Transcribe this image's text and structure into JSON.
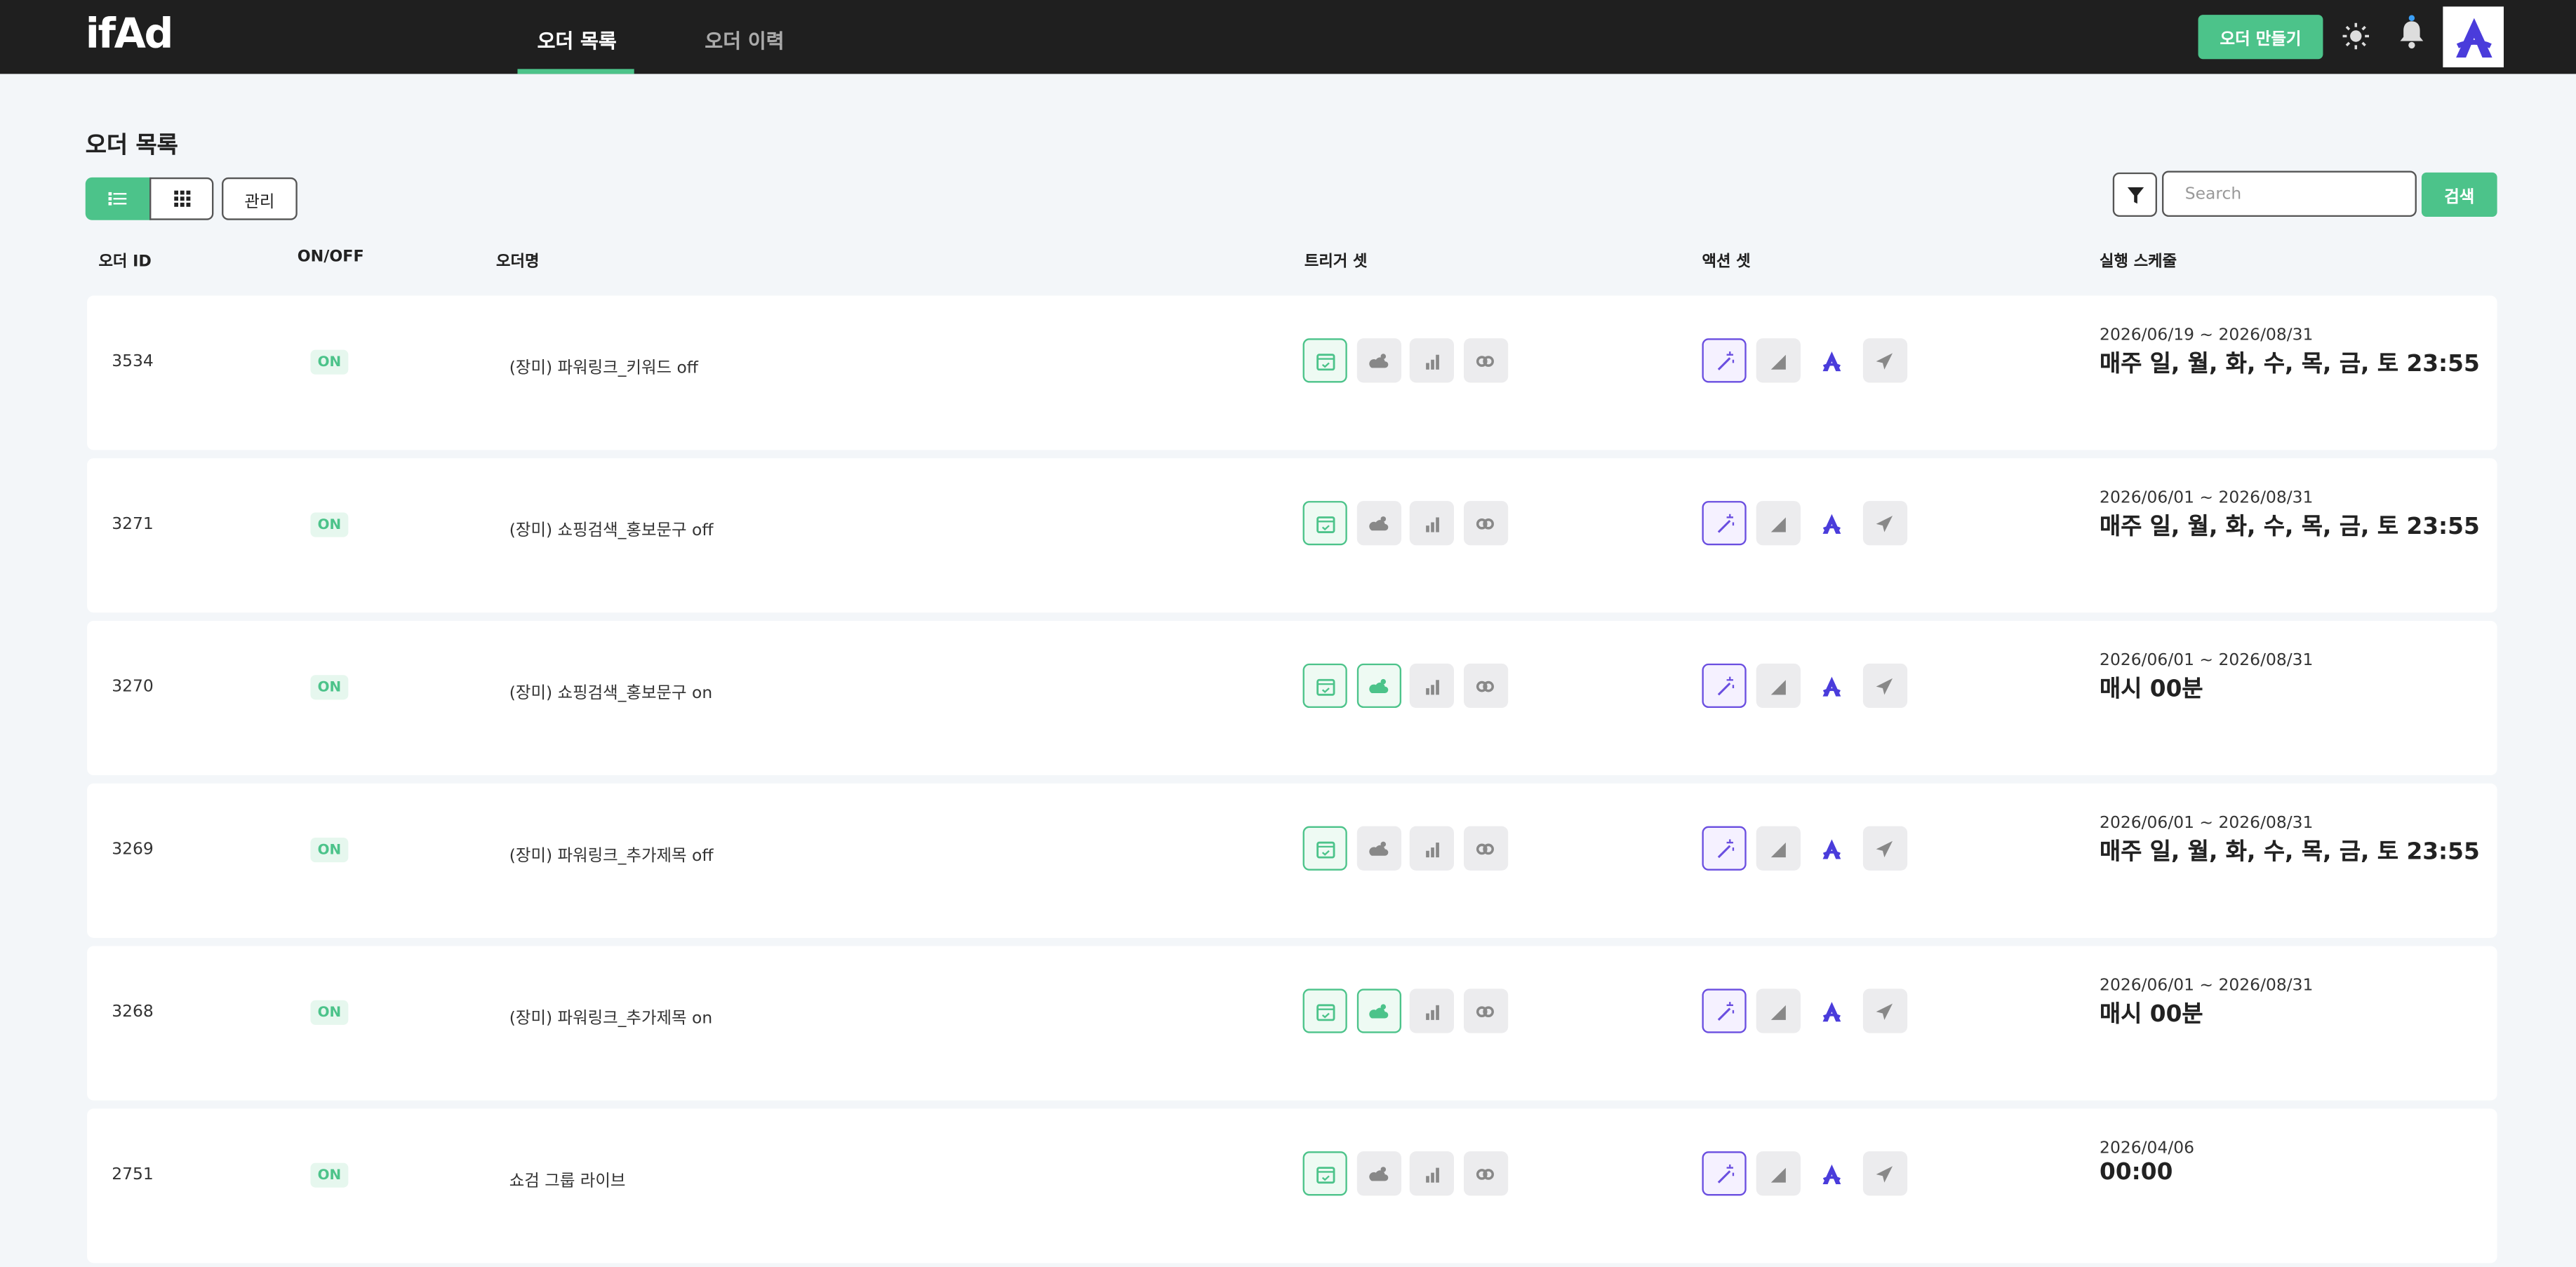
{
  "header": {
    "logo": "ifAd",
    "tabs": [
      "오더 목록",
      "오더 이력"
    ],
    "create_button": "오더 만들기"
  },
  "title": "오더 목록",
  "toolbar": {
    "manage_button": "관리",
    "search_placeholder": "Search",
    "search_button": "검색"
  },
  "table": {
    "columns": [
      "오더 ID",
      "ON/OFF",
      "오더명",
      "트리거 셋",
      "액션 셋",
      "실행 스케줄"
    ],
    "rows": [
      {
        "id": "3534",
        "status": "ON",
        "name": "(장미) 파워링크_키워드 off",
        "triggers": [
          true,
          false,
          false,
          false
        ],
        "period": "2026/06/19 ~ 2026/08/31",
        "schedule": "매주 일, 월, 화, 수, 목, 금, 토 23:55"
      },
      {
        "id": "3271",
        "status": "ON",
        "name": "(장미) 쇼핑검색_홍보문구 off",
        "triggers": [
          true,
          false,
          false,
          false
        ],
        "period": "2026/06/01 ~ 2026/08/31",
        "schedule": "매주 일, 월, 화, 수, 목, 금, 토 23:55"
      },
      {
        "id": "3270",
        "status": "ON",
        "name": "(장미) 쇼핑검색_홍보문구 on",
        "triggers": [
          true,
          true,
          false,
          false
        ],
        "period": "2026/06/01 ~ 2026/08/31",
        "schedule": "매시 00분"
      },
      {
        "id": "3269",
        "status": "ON",
        "name": "(장미) 파워링크_추가제목 off",
        "triggers": [
          true,
          false,
          false,
          false
        ],
        "period": "2026/06/01 ~ 2026/08/31",
        "schedule": "매주 일, 월, 화, 수, 목, 금, 토 23:55"
      },
      {
        "id": "3268",
        "status": "ON",
        "name": "(장미) 파워링크_추가제목 on",
        "triggers": [
          true,
          true,
          false,
          false
        ],
        "period": "2026/06/01 ~ 2026/08/31",
        "schedule": "매시 00분"
      },
      {
        "id": "2751",
        "status": "ON",
        "name": "쇼검 그룹 라이브",
        "triggers": [
          true,
          false,
          false,
          false
        ],
        "period": "2026/04/06",
        "schedule": "00:00"
      }
    ]
  }
}
